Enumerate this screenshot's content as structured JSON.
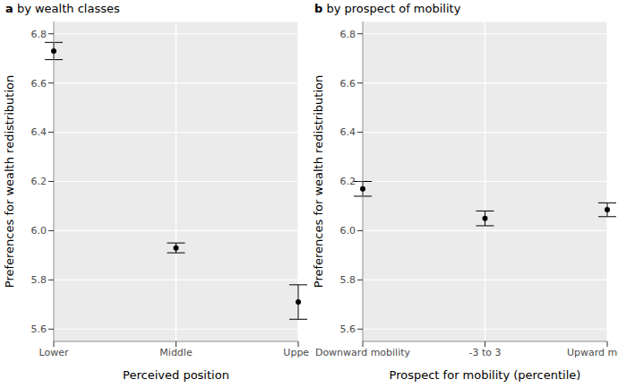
{
  "chart_data": [
    {
      "type": "scatter",
      "title": "a by wealth classes",
      "x_label": "Perceived position",
      "y_label": "Preferences for wealth redistribution",
      "categories": [
        "Lower",
        "Middle",
        "Upper"
      ],
      "values": [
        6.73,
        5.93,
        5.71
      ],
      "error": [
        0.035,
        0.02,
        0.07
      ],
      "color": "#000000",
      "marker": "circle",
      "grid": true,
      "ylim": [
        5.55,
        6.85
      ],
      "yticks": [
        5.6,
        5.8,
        {
          "value": 6,
          "label": "6.0"
        },
        6.2,
        6.4,
        6.6,
        6.8
      ]
    },
    {
      "type": "scatter",
      "title": "b by prospect of mobility",
      "x_label": "Prospect for mobility (percentile)",
      "y_label": "Preferences for wealth redistribution",
      "categories": [
        "Downward mobility",
        "-3 to 3",
        "Upward mobility"
      ],
      "values": [
        6.17,
        6.05,
        6.085
      ],
      "error": [
        0.03,
        0.03,
        0.028
      ],
      "color": "#000000",
      "marker": "circle",
      "grid": true,
      "ylim": [
        5.55,
        6.85
      ],
      "yticks": [
        5.6,
        5.8,
        {
          "value": 6,
          "label": "6.0"
        },
        6.2,
        6.4,
        6.6,
        6.8
      ]
    }
  ]
}
